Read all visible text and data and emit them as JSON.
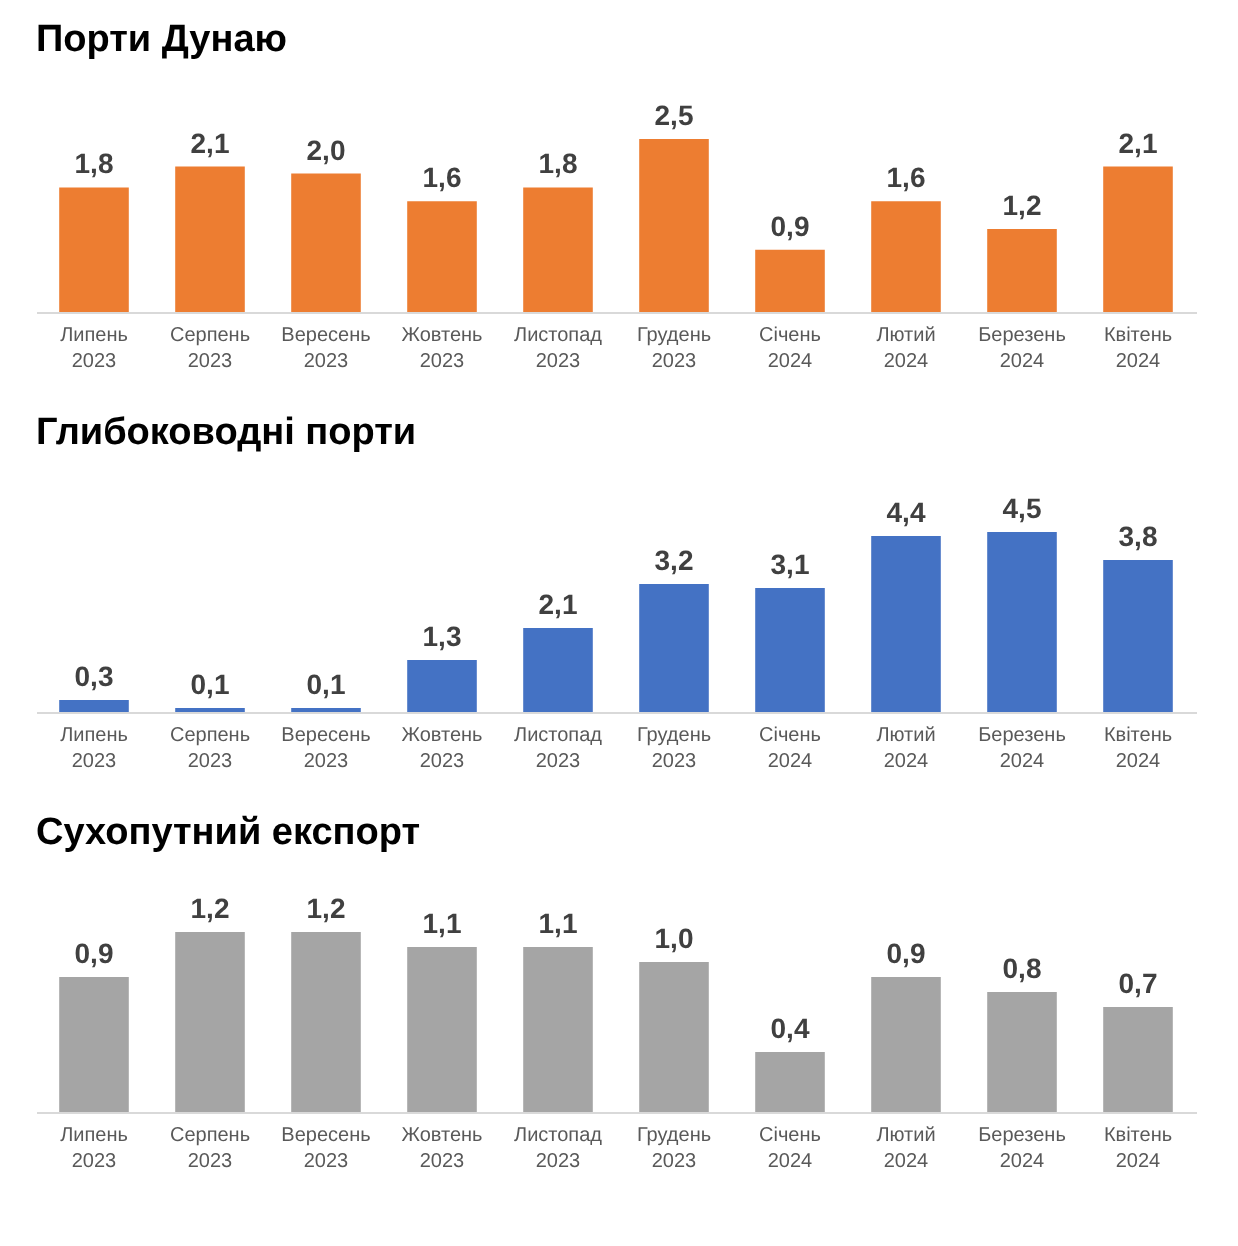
{
  "chart_data": [
    {
      "type": "bar",
      "title": "Порти Дунаю",
      "categories": [
        "Липень 2023",
        "Серпень 2023",
        "Вересень 2023",
        "Жовтень 2023",
        "Листопад 2023",
        "Грудень 2023",
        "Січень 2024",
        "Лютий 2024",
        "Березень 2024",
        "Квітень 2024"
      ],
      "values": [
        1.8,
        2.1,
        2.0,
        1.6,
        1.8,
        2.5,
        0.9,
        1.6,
        1.2,
        2.1
      ],
      "color": "#ed7d31",
      "value_labels": [
        "1,8",
        "2,1",
        "2,0",
        "1,6",
        "1,8",
        "2,5",
        "0,9",
        "1,6",
        "1,2",
        "2,1"
      ]
    },
    {
      "type": "bar",
      "title": "Глибоководні порти",
      "categories": [
        "Липень 2023",
        "Серпень 2023",
        "Вересень 2023",
        "Жовтень 2023",
        "Листопад 2023",
        "Грудень 2023",
        "Січень 2024",
        "Лютий 2024",
        "Березень 2024",
        "Квітень 2024"
      ],
      "values": [
        0.3,
        0.1,
        0.1,
        1.3,
        2.1,
        3.2,
        3.1,
        4.4,
        4.5,
        3.8
      ],
      "color": "#4472c4",
      "value_labels": [
        "0,3",
        "0,1",
        "0,1",
        "1,3",
        "2,1",
        "3,2",
        "3,1",
        "4,4",
        "4,5",
        "3,8"
      ]
    },
    {
      "type": "bar",
      "title": "Сухопутний експорт",
      "categories": [
        "Липень 2023",
        "Серпень 2023",
        "Вересень 2023",
        "Жовтень 2023",
        "Листопад 2023",
        "Грудень 2023",
        "Січень 2024",
        "Лютий 2024",
        "Березень 2024",
        "Квітень 2024"
      ],
      "values": [
        0.9,
        1.2,
        1.2,
        1.1,
        1.1,
        1.0,
        0.4,
        0.9,
        0.8,
        0.7
      ],
      "color": "#a5a5a5",
      "value_labels": [
        "0,9",
        "1,2",
        "1,2",
        "1,1",
        "1,1",
        "1,0",
        "0,4",
        "0,9",
        "0,8",
        "0,7"
      ]
    }
  ]
}
